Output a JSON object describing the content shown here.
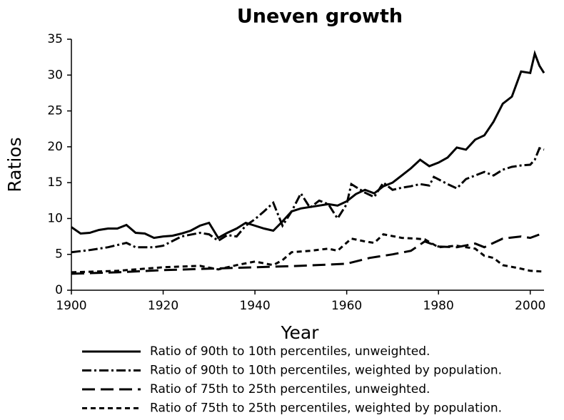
{
  "chart_data": {
    "type": "line",
    "title": "Uneven growth",
    "xlabel": "Year",
    "ylabel": "Ratios",
    "xlim": [
      1900,
      2003
    ],
    "xticks": [
      1900,
      1920,
      1940,
      1960,
      1980,
      2000
    ],
    "ylim": [
      0,
      35
    ],
    "yticks": [
      0,
      5,
      10,
      15,
      20,
      25,
      30,
      35
    ],
    "series": [
      {
        "name": "Ratio of 90th to 10th percentiles, unweighted.",
        "color": "#000000",
        "style": "solid",
        "x": [
          1900,
          1902,
          1904,
          1906,
          1908,
          1910,
          1912,
          1914,
          1916,
          1918,
          1920,
          1922,
          1924,
          1926,
          1928,
          1930,
          1932,
          1934,
          1936,
          1938,
          1940,
          1942,
          1944,
          1946,
          1948,
          1950,
          1952,
          1954,
          1956,
          1958,
          1960,
          1962,
          1964,
          1966,
          1968,
          1970,
          1972,
          1974,
          1976,
          1978,
          1980,
          1982,
          1984,
          1986,
          1988,
          1990,
          1992,
          1994,
          1996,
          1998,
          2000,
          2001,
          2002,
          2003
        ],
        "values": [
          8.8,
          7.9,
          8.0,
          8.4,
          8.6,
          8.6,
          9.1,
          8.0,
          7.9,
          7.3,
          7.5,
          7.6,
          7.9,
          8.3,
          9.0,
          9.4,
          7.3,
          8.0,
          8.6,
          9.4,
          9.0,
          8.6,
          8.3,
          9.6,
          11.0,
          11.4,
          11.6,
          11.8,
          12.0,
          11.8,
          12.4,
          13.4,
          14.0,
          13.5,
          14.5,
          15.0,
          16.0,
          17.0,
          18.2,
          17.3,
          17.8,
          18.5,
          19.9,
          19.6,
          21.0,
          21.6,
          23.5,
          26.0,
          27.0,
          30.5,
          30.3,
          33.0,
          31.3,
          30.3
        ]
      },
      {
        "name": "Ratio of 90th to 10th percentiles, weighted by population.",
        "color": "#000000",
        "style": "dashdot",
        "x": [
          1900,
          1904,
          1908,
          1912,
          1914,
          1918,
          1920,
          1924,
          1928,
          1930,
          1932,
          1934,
          1936,
          1938,
          1940,
          1942,
          1944,
          1946,
          1948,
          1950,
          1952,
          1954,
          1956,
          1958,
          1960,
          1961,
          1964,
          1966,
          1968,
          1970,
          1972,
          1974,
          1976,
          1978,
          1979,
          1982,
          1984,
          1986,
          1988,
          1990,
          1992,
          1994,
          1996,
          1998,
          2000,
          2001,
          2002,
          2003
        ],
        "values": [
          5.3,
          5.6,
          6.0,
          6.6,
          6.0,
          6.0,
          6.2,
          7.5,
          8.0,
          7.8,
          6.9,
          7.7,
          7.5,
          9.0,
          9.9,
          11.0,
          12.2,
          9.0,
          11.0,
          13.5,
          11.5,
          12.5,
          12.0,
          10.0,
          12.0,
          14.8,
          13.6,
          13.0,
          15.0,
          14.0,
          14.3,
          14.5,
          14.8,
          14.6,
          15.8,
          14.8,
          14.2,
          15.5,
          16.0,
          16.5,
          16.0,
          16.8,
          17.2,
          17.4,
          17.5,
          18.2,
          19.8,
          19.6
        ]
      },
      {
        "name": "Ratio of 75th to 25th percentiles, unweighted.",
        "color": "#000000",
        "style": "longdash",
        "x": [
          1900,
          1910,
          1920,
          1930,
          1940,
          1950,
          1960,
          1965,
          1970,
          1974,
          1977,
          1980,
          1984,
          1988,
          1990,
          1994,
          1998,
          2000,
          2003
        ],
        "values": [
          2.3,
          2.5,
          2.8,
          3.0,
          3.2,
          3.4,
          3.7,
          4.5,
          5.0,
          5.5,
          6.8,
          6.1,
          6.0,
          6.5,
          6.0,
          7.2,
          7.5,
          7.3,
          8.0
        ]
      },
      {
        "name": "Ratio of 75th to 25th percentiles, weighted by population.",
        "color": "#000000",
        "style": "shortdash",
        "x": [
          1900,
          1910,
          1920,
          1928,
          1932,
          1936,
          1940,
          1944,
          1946,
          1948,
          1952,
          1956,
          1958,
          1961,
          1964,
          1966,
          1968,
          1972,
          1975,
          1977,
          1980,
          1984,
          1988,
          1990,
          1992,
          1994,
          1998,
          2000,
          2003
        ],
        "values": [
          2.5,
          2.7,
          3.2,
          3.4,
          2.9,
          3.5,
          4.0,
          3.5,
          4.2,
          5.3,
          5.5,
          5.8,
          5.5,
          7.2,
          6.8,
          6.6,
          7.8,
          7.3,
          7.2,
          7.1,
          6.0,
          6.2,
          5.8,
          4.8,
          4.5,
          3.5,
          3.0,
          2.7,
          2.6
        ]
      }
    ]
  }
}
